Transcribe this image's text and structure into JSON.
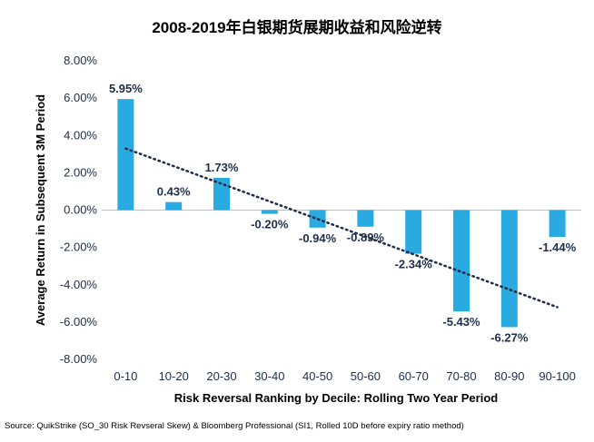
{
  "chart_data": {
    "type": "bar",
    "title": "2008-2019年白银期货展期收益和风险逆转",
    "xlabel": "Risk Reversal Ranking by Decile: Rolling Two Year Period",
    "ylabel": "Average Return in Subsequent 3M Period",
    "source": "Source: QuikStrike (SO_30 Risk Revseral Skew) & Bloomberg Professional (SI1, Rolled 10D before expiry ratio method)",
    "categories": [
      "0-10",
      "10-20",
      "20-30",
      "30-40",
      "40-50",
      "50-60",
      "60-70",
      "70-80",
      "80-90",
      "90-100"
    ],
    "values": [
      5.95,
      0.43,
      1.73,
      -0.2,
      -0.94,
      -0.89,
      -2.34,
      -5.43,
      -6.27,
      -1.44
    ],
    "data_labels": [
      "5.95%",
      "0.43%",
      "1.73%",
      "-0.20%",
      "-0.94%",
      "-0.89%",
      "-2.34%",
      "-5.43%",
      "-6.27%",
      "-1.44%"
    ],
    "ylim": [
      -8,
      8
    ],
    "yticks": [
      8,
      6,
      4,
      2,
      0,
      -2,
      -4,
      -6,
      -8
    ],
    "ytick_labels": [
      "8.00%",
      "6.00%",
      "4.00%",
      "2.00%",
      "0.00%",
      "-2.00%",
      "-4.00%",
      "-6.00%",
      "-8.00%"
    ],
    "grid": false,
    "legend": "none",
    "trendline": {
      "type": "linear",
      "style": "dotted",
      "start": 3.3,
      "end": -5.2
    },
    "colors": {
      "bar": "#29abe2",
      "text": "#1f2d4a",
      "trend": "#1f2d4a",
      "axis": "#bfbfbf"
    }
  }
}
